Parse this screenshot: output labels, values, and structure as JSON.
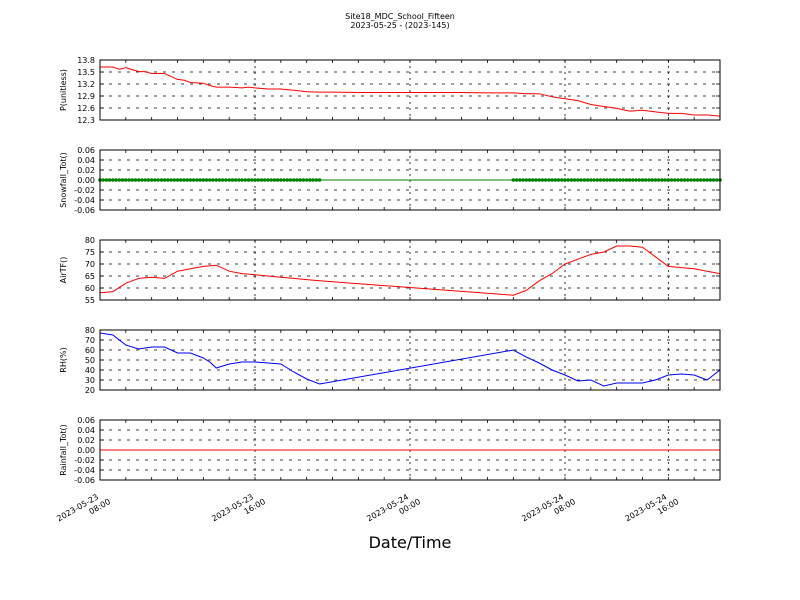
{
  "chart_data": {
    "type": "line",
    "title": "Site18_MDC_School_Fifteen",
    "subtitle": "2023-05-25 - (2023-145)",
    "xlabel": "Date/Time",
    "x_ticks": [
      {
        "line1": "2023-05-23",
        "line2": "08:00"
      },
      {
        "line1": "2023-05-23",
        "line2": "16:00"
      },
      {
        "line1": "2023-05-24",
        "line2": "00:00"
      },
      {
        "line1": "2023-05-24",
        "line2": "08:00"
      },
      {
        "line1": "2023-05-24",
        "line2": "16:00"
      }
    ],
    "x_range": [
      "2023-05-23 08:00",
      "2023-05-24 20:00"
    ],
    "grid": true,
    "panels": [
      {
        "ylabel": "P(unitless)",
        "ylim": [
          12.25,
          13.8
        ],
        "yticks": [
          "13.8",
          "13.5",
          "13.2",
          "12.9",
          "12.6",
          "12.3"
        ],
        "color": "#ff0000",
        "style": "line",
        "series": {
          "x_hours": [
            0,
            1,
            1.5,
            2,
            3,
            3.5,
            4,
            5,
            6,
            6.5,
            7,
            8,
            8.5,
            9,
            10,
            11,
            11.5,
            12,
            13,
            14,
            15,
            16,
            17,
            18,
            20,
            22,
            24,
            26,
            28,
            30,
            32,
            33,
            34,
            35,
            36,
            37,
            38,
            39,
            40,
            41,
            42,
            43,
            44,
            45,
            46,
            47,
            48
          ],
          "values": [
            13.62,
            13.62,
            13.56,
            13.6,
            13.5,
            13.5,
            13.45,
            13.45,
            13.3,
            13.28,
            13.22,
            13.2,
            13.14,
            13.1,
            13.1,
            13.08,
            13.1,
            13.08,
            13.05,
            13.05,
            13.02,
            12.98,
            12.97,
            12.97,
            12.96,
            12.96,
            12.96,
            12.96,
            12.96,
            12.95,
            12.95,
            12.93,
            12.93,
            12.85,
            12.8,
            12.75,
            12.65,
            12.6,
            12.55,
            12.48,
            12.5,
            12.46,
            12.42,
            12.42,
            12.38,
            12.38,
            12.35
          ]
        }
      },
      {
        "ylabel": "Snowfall_Tot()",
        "ylim": [
          -0.06,
          0.06
        ],
        "yticks": [
          "0.06",
          "0.04",
          "0.02",
          "0.00",
          "-0.02",
          "-0.04",
          "-0.06"
        ],
        "color": "#008000",
        "style": "line+markers",
        "series": {
          "x_hours": [
            0,
            48
          ],
          "values": [
            0,
            0
          ],
          "marker_ranges_hours": [
            [
              0,
              17
            ],
            [
              32,
              48
            ]
          ]
        }
      },
      {
        "ylabel": "AirTF()",
        "ylim": [
          55,
          80
        ],
        "yticks": [
          "80",
          "75",
          "70",
          "65",
          "60",
          "55"
        ],
        "color": "#ff0000",
        "style": "line",
        "series": {
          "x_hours": [
            0,
            1,
            2,
            3,
            4,
            5,
            6,
            7,
            8,
            9,
            10,
            11,
            12,
            13,
            14,
            15,
            16,
            17,
            32,
            33,
            34,
            35,
            36,
            37,
            38,
            39,
            40,
            41,
            42,
            43,
            44,
            45,
            46,
            47,
            48
          ],
          "values": [
            58,
            58.5,
            62,
            64,
            64.5,
            64,
            67,
            68,
            69,
            69.5,
            67,
            66,
            65.5,
            65,
            64.5,
            64,
            63.5,
            63,
            57,
            59,
            63,
            66,
            70,
            72,
            74,
            75,
            77.5,
            77.5,
            77,
            73,
            69,
            68.5,
            68,
            67,
            66
          ]
        }
      },
      {
        "ylabel": "RH(%)",
        "ylim": [
          20,
          80
        ],
        "yticks": [
          "80",
          "70",
          "60",
          "50",
          "40",
          "30",
          "20"
        ],
        "color": "#0000ff",
        "style": "line",
        "series": {
          "x_hours": [
            0,
            1,
            2,
            3,
            4,
            5,
            6,
            7,
            8,
            8.5,
            9,
            10,
            11,
            12,
            13,
            14,
            15,
            16,
            17,
            32,
            33,
            34,
            35,
            36,
            37,
            38,
            39,
            40,
            41,
            42,
            43,
            44,
            45,
            46,
            47,
            48
          ],
          "values": [
            77,
            75,
            65,
            61,
            63,
            63,
            57,
            57,
            52,
            48,
            42,
            46,
            48,
            48,
            47,
            46,
            38,
            31,
            26,
            60,
            53,
            47,
            40,
            35,
            29,
            30,
            24,
            27,
            27,
            27,
            30,
            35,
            36,
            35,
            30,
            40
          ]
        }
      },
      {
        "ylabel": "Rainfall_Tot()",
        "ylim": [
          -0.06,
          0.06
        ],
        "yticks": [
          "0.06",
          "0.04",
          "0.02",
          "0.00",
          "-0.02",
          "-0.04",
          "-0.06"
        ],
        "color": "#ff0000",
        "style": "line",
        "series": {
          "x_hours": [
            0,
            48
          ],
          "values": [
            0,
            0
          ]
        }
      }
    ]
  }
}
